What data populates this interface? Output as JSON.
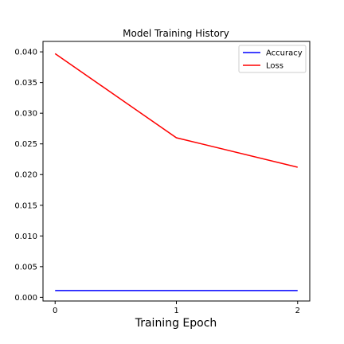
{
  "chart_data": {
    "type": "line",
    "title": "Model Training History",
    "xlabel": "Training Epoch",
    "ylabel": "",
    "x": [
      0,
      1,
      2
    ],
    "xlim": [
      -0.1,
      2.1
    ],
    "ylim": [
      -0.0006,
      0.0417
    ],
    "xticks": [
      0,
      1,
      2
    ],
    "xtick_labels": [
      "0",
      "1",
      "2"
    ],
    "yticks": [
      0.0,
      0.005,
      0.01,
      0.015,
      0.02,
      0.025,
      0.03,
      0.035,
      0.04
    ],
    "ytick_labels": [
      "0.000",
      "0.005",
      "0.010",
      "0.015",
      "0.020",
      "0.025",
      "0.030",
      "0.035",
      "0.040"
    ],
    "grid": false,
    "legend": "top-right",
    "series": [
      {
        "name": "Accuracy",
        "color": "#0000ff",
        "values": [
          0.0011,
          0.0011,
          0.0011
        ]
      },
      {
        "name": "Loss",
        "color": "#ff0000",
        "values": [
          0.0397,
          0.026,
          0.0212
        ]
      }
    ]
  }
}
